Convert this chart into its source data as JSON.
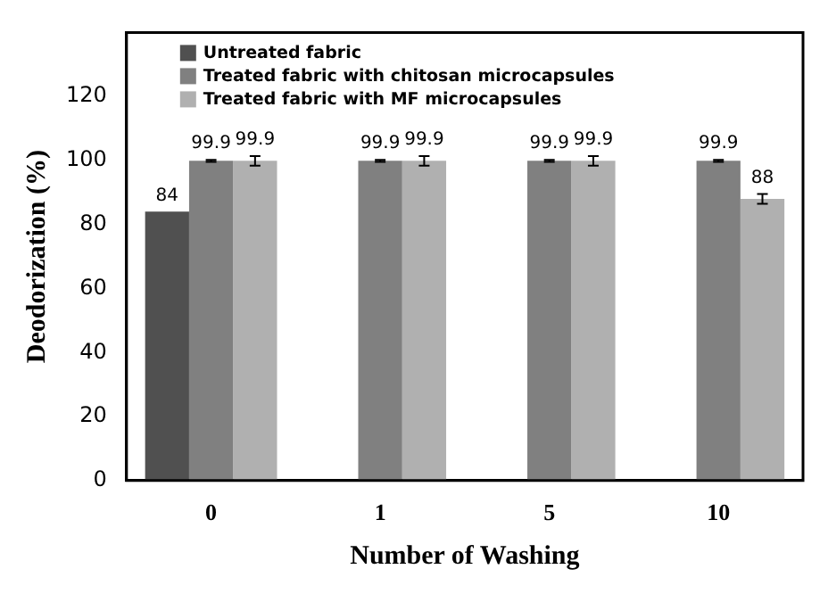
{
  "chart_data": {
    "type": "bar",
    "xlabel": "Number of Washing",
    "ylabel": "Deodorization (%)",
    "categories": [
      "0",
      "1",
      "5",
      "10"
    ],
    "series": [
      {
        "name": "Untreated fabric",
        "color": "#505050",
        "values": [
          84,
          null,
          null,
          null
        ],
        "value_labels": [
          "84",
          null,
          null,
          null
        ]
      },
      {
        "name": "Treated fabric with chitosan microcapsules",
        "color": "#808080",
        "values": [
          99.9,
          99.9,
          99.9,
          99.9
        ],
        "errors": [
          0.3,
          0.3,
          0.3,
          0.3
        ],
        "value_labels": [
          "99.9",
          "99.9",
          "99.9",
          "99.9"
        ]
      },
      {
        "name": "Treated fabric with MF microcapsules",
        "color": "#b0b0b0",
        "values": [
          99.9,
          99.9,
          99.9,
          88
        ],
        "errors": [
          1.5,
          1.5,
          1.5,
          1.5
        ],
        "value_labels": [
          "99.9",
          "99.9",
          "99.9",
          "88"
        ]
      }
    ],
    "ylim": [
      0,
      140
    ],
    "yticks": [
      0,
      20,
      40,
      60,
      80,
      100,
      120
    ],
    "grid": false,
    "legend": "top left"
  }
}
